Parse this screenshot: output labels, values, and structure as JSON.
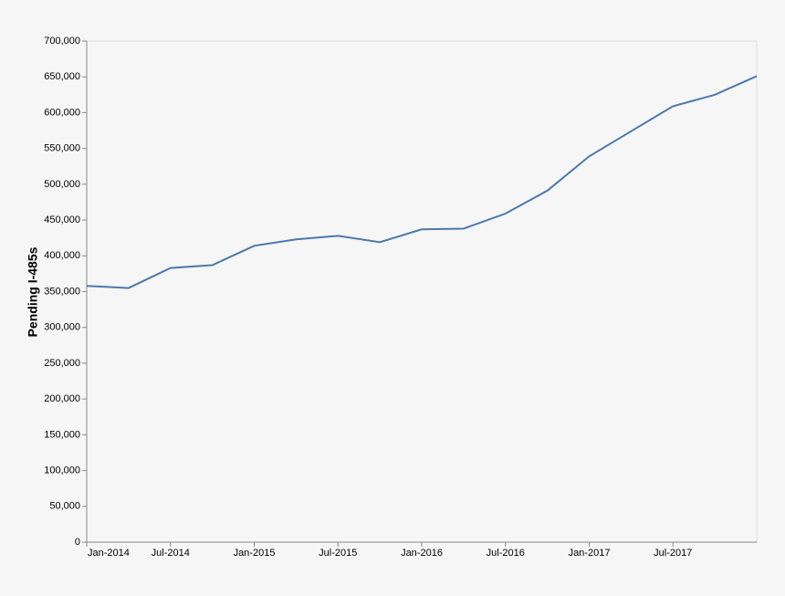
{
  "chart_data": {
    "type": "line",
    "y_label": "Pending I-485s",
    "x": [
      "2014-01",
      "2014-04",
      "2014-07",
      "2014-10",
      "2015-01",
      "2015-04",
      "2015-07",
      "2015-10",
      "2016-01",
      "2016-04",
      "2016-07",
      "2016-10",
      "2017-01",
      "2017-04",
      "2017-07",
      "2017-10",
      "2018-01"
    ],
    "series": [
      {
        "name": "Pending I-485s",
        "color": "#4c78a8",
        "values": [
          358000,
          355000,
          383000,
          387000,
          414000,
          423000,
          428000,
          419000,
          437000,
          438000,
          459000,
          491000,
          539000,
          574000,
          609000,
          625000,
          651000
        ]
      }
    ],
    "xlim": [
      "2014-01",
      "2018-01"
    ],
    "xticks": [
      {
        "value": "2014-01",
        "label": "Jan-2014"
      },
      {
        "value": "2014-07",
        "label": "Jul-2014"
      },
      {
        "value": "2015-01",
        "label": "Jan-2015"
      },
      {
        "value": "2015-07",
        "label": "Jul-2015"
      },
      {
        "value": "2016-01",
        "label": "Jan-2016"
      },
      {
        "value": "2016-07",
        "label": "Jul-2016"
      },
      {
        "value": "2017-01",
        "label": "Jan-2017"
      },
      {
        "value": "2017-07",
        "label": "Jul-2017"
      }
    ],
    "ylim": [
      0,
      700000
    ],
    "yticks": [
      0,
      {
        "value": 50000,
        "label": "50,000"
      },
      {
        "value": 100000,
        "label": "100,000"
      },
      {
        "value": 150000,
        "label": "150,000"
      },
      {
        "value": 200000,
        "label": "200,000"
      },
      {
        "value": 250000,
        "label": "250,000"
      },
      {
        "value": 300000,
        "label": "300,000"
      },
      {
        "value": 350000,
        "label": "350,000"
      },
      {
        "value": 400000,
        "label": "400,000"
      },
      {
        "value": 450000,
        "label": "450,000"
      },
      {
        "value": 500000,
        "label": "500,000"
      },
      {
        "value": 550000,
        "label": "550,000"
      },
      {
        "value": 600000,
        "label": "600,000"
      },
      {
        "value": 650000,
        "label": "650,000"
      },
      {
        "value": 700000,
        "label": "700,000"
      }
    ]
  }
}
